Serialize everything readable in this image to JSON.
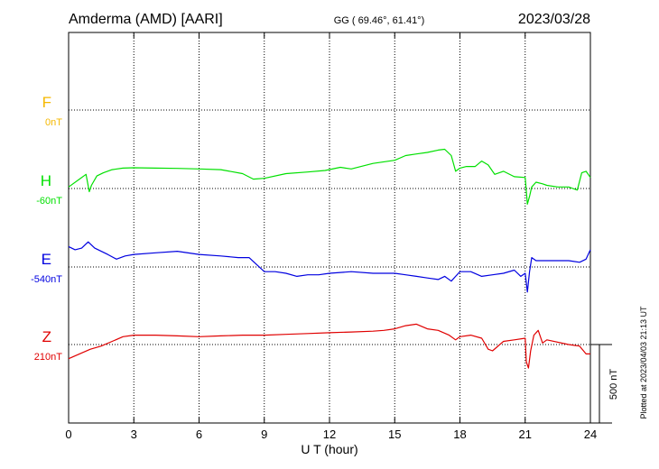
{
  "header": {
    "station": "Amderma (AMD)  [AARI]",
    "coords": "GG ( 69.46°,  61.41°)",
    "date": "2023/03/28"
  },
  "plotted_note": "Plotted at 2023/04/03 21:13 UT",
  "scale_bar_label": "500 nT",
  "chart_data": {
    "type": "line",
    "xlabel": "U T (hour)",
    "xlim": [
      0,
      24
    ],
    "xticks": [
      "0",
      "3",
      "6",
      "9",
      "12",
      "15",
      "18",
      "21",
      "24"
    ],
    "grid": true,
    "scale_bar_nT": 500,
    "series": [
      {
        "name": "F",
        "baseline_label": "0nT",
        "color": "#f5b800",
        "x": [],
        "y": []
      },
      {
        "name": "H",
        "baseline_label": "-60nT",
        "color": "#00e000",
        "x": [
          0,
          0.5,
          0.8,
          0.95,
          1.05,
          1.3,
          1.6,
          2,
          2.5,
          3,
          4,
          5,
          6,
          7,
          8,
          8.5,
          9,
          10,
          11,
          11.8,
          12.5,
          13,
          14,
          15,
          15.5,
          16,
          16.5,
          17,
          17.3,
          17.6,
          17.8,
          18,
          18.3,
          18.7,
          19,
          19.3,
          19.6,
          20,
          20.5,
          21,
          21.1,
          21.2,
          21.3,
          21.5,
          21.8,
          22,
          22.5,
          23,
          23.4,
          23.6,
          23.8,
          24
        ],
        "y": [
          -50,
          0,
          30,
          -80,
          -40,
          20,
          40,
          60,
          70,
          72,
          70,
          68,
          65,
          60,
          35,
          0,
          5,
          35,
          45,
          55,
          75,
          65,
          100,
          120,
          150,
          160,
          170,
          185,
          190,
          150,
          50,
          70,
          80,
          80,
          115,
          90,
          30,
          50,
          15,
          10,
          -160,
          -110,
          -50,
          -20,
          -30,
          -40,
          -50,
          -50,
          -70,
          40,
          50,
          10
        ]
      },
      {
        "name": "E",
        "baseline_label": "-540nT",
        "color": "#0000e0",
        "x": [
          0,
          0.3,
          0.6,
          0.9,
          1.2,
          1.5,
          1.8,
          2.2,
          2.6,
          3,
          4,
          5,
          6,
          7,
          7.8,
          8.3,
          9,
          9.5,
          10,
          10.5,
          11,
          11.5,
          12,
          13,
          14,
          15,
          15.5,
          16,
          16.5,
          17,
          17.3,
          17.6,
          17.8,
          18,
          18.5,
          19,
          19.5,
          20,
          20.5,
          20.8,
          21,
          21.1,
          21.2,
          21.3,
          21.5,
          22,
          23,
          23.5,
          23.8,
          24
        ],
        "y": [
          -410,
          -430,
          -420,
          -380,
          -420,
          -440,
          -460,
          -490,
          -470,
          -460,
          -450,
          -440,
          -460,
          -470,
          -480,
          -480,
          -570,
          -570,
          -580,
          -600,
          -590,
          -590,
          -580,
          -570,
          -580,
          -580,
          -590,
          -600,
          -610,
          -620,
          -600,
          -630,
          -600,
          -570,
          -570,
          -600,
          -590,
          -580,
          -560,
          -600,
          -580,
          -700,
          -570,
          -480,
          -500,
          -500,
          -500,
          -510,
          -490,
          -430
        ]
      },
      {
        "name": "Z",
        "baseline_label": "210nT",
        "color": "#e00000",
        "x": [
          0,
          0.5,
          1,
          1.5,
          2,
          2.5,
          3,
          4,
          5,
          6,
          7,
          8,
          9,
          10,
          11,
          12,
          13,
          14,
          14.5,
          15,
          15.5,
          16,
          16.5,
          17,
          17.5,
          17.8,
          18,
          18.5,
          19,
          19.3,
          19.5,
          20,
          20.5,
          21,
          21.05,
          21.15,
          21.25,
          21.4,
          21.6,
          21.8,
          22,
          23,
          23.5,
          23.8,
          24
        ],
        "y": [
          120,
          150,
          180,
          200,
          230,
          260,
          270,
          270,
          265,
          260,
          265,
          270,
          270,
          275,
          280,
          285,
          290,
          295,
          300,
          310,
          330,
          340,
          310,
          300,
          270,
          240,
          260,
          270,
          250,
          180,
          170,
          230,
          240,
          250,
          100,
          60,
          170,
          270,
          300,
          220,
          240,
          210,
          200,
          150,
          150
        ]
      }
    ]
  }
}
